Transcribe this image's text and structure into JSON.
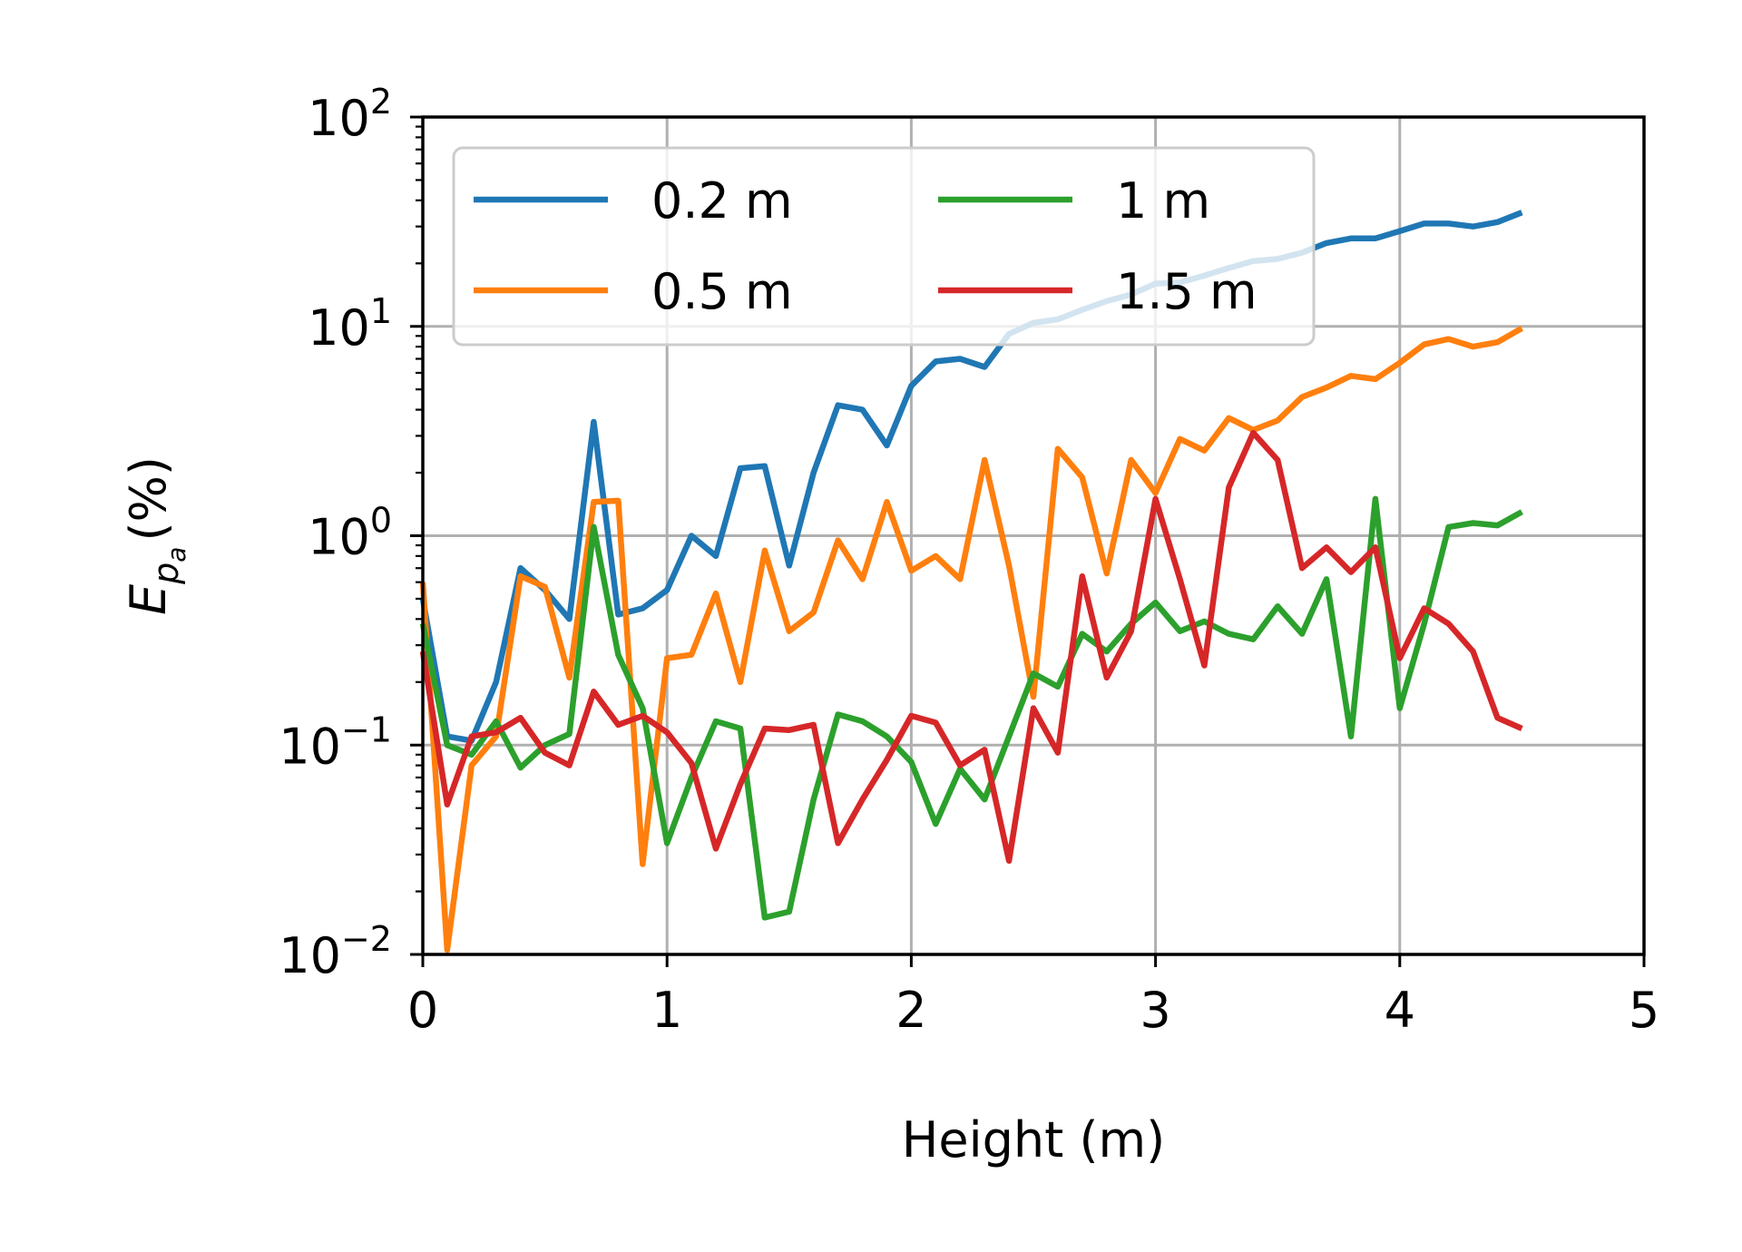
{
  "chart_data": {
    "type": "line",
    "xlabel": "Height (m)",
    "ylabel": {
      "italic_main": "E",
      "sub": "p",
      "subsub": "a",
      "suffix": "(%)"
    },
    "xlim": [
      0,
      5
    ],
    "ylim": [
      0.01,
      100
    ],
    "yscale": "log",
    "grid": true,
    "legend_placement": "upper-left",
    "legend_columns": 2,
    "x_ticks": [
      0,
      1,
      2,
      3,
      4,
      5
    ],
    "x_tick_labels": [
      "0",
      "1",
      "2",
      "3",
      "4",
      "5"
    ],
    "y_ticks": [
      0.01,
      0.1,
      1,
      10,
      100
    ],
    "y_tick_labels": [
      {
        "base": "10",
        "exp": "−2"
      },
      {
        "base": "10",
        "exp": "−1"
      },
      {
        "base": "10",
        "exp": "0"
      },
      {
        "base": "10",
        "exp": "1"
      },
      {
        "base": "10",
        "exp": "2"
      }
    ],
    "x": [
      0,
      0.1,
      0.2,
      0.3,
      0.4,
      0.5,
      0.6,
      0.7,
      0.8,
      0.9,
      1.0,
      1.1,
      1.2,
      1.3,
      1.4,
      1.5,
      1.6,
      1.7,
      1.8,
      1.9,
      2.0,
      2.1,
      2.2,
      2.3,
      2.4,
      2.5,
      2.6,
      2.7,
      2.8,
      2.9,
      3.0,
      3.1,
      3.2,
      3.3,
      3.4,
      3.5,
      3.6,
      3.7,
      3.8,
      3.9,
      4.0,
      4.1,
      4.2,
      4.3,
      4.4,
      4.5
    ],
    "series": [
      {
        "name": "0.2 m",
        "color": "#1f77b4",
        "values": [
          0.5,
          0.11,
          0.105,
          0.2,
          0.7,
          0.55,
          0.4,
          3.5,
          0.42,
          0.45,
          0.55,
          1.0,
          0.8,
          2.1,
          2.15,
          0.72,
          2.0,
          4.2,
          4.0,
          2.7,
          5.2,
          6.8,
          7.0,
          6.4,
          9.2,
          10.4,
          10.8,
          12.0,
          13.2,
          14.2,
          16.0,
          16.2,
          17.5,
          19.0,
          20.5,
          21.0,
          22.5,
          25.0,
          26.3,
          26.3,
          28.5,
          31.0,
          31.0,
          30.0,
          31.5,
          35.0
        ]
      },
      {
        "name": "0.5 m",
        "color": "#ff7f0e",
        "values": [
          0.6,
          0.0105,
          0.08,
          0.11,
          0.64,
          0.57,
          0.21,
          1.45,
          1.47,
          0.027,
          0.26,
          0.27,
          0.53,
          0.2,
          0.85,
          0.35,
          0.43,
          0.95,
          0.62,
          1.45,
          0.68,
          0.8,
          0.62,
          2.3,
          0.72,
          0.17,
          2.6,
          1.9,
          0.66,
          2.3,
          1.6,
          2.9,
          2.55,
          3.65,
          3.2,
          3.55,
          4.6,
          5.1,
          5.8,
          5.6,
          6.7,
          8.2,
          8.7,
          8.0,
          8.4,
          9.8
        ]
      },
      {
        "name": "1 m",
        "color": "#2ca02c",
        "values": [
          0.38,
          0.1,
          0.09,
          0.13,
          0.078,
          0.1,
          0.113,
          1.1,
          0.27,
          0.15,
          0.034,
          0.07,
          0.13,
          0.12,
          0.015,
          0.016,
          0.055,
          0.14,
          0.13,
          0.11,
          0.083,
          0.042,
          0.077,
          0.055,
          0.11,
          0.22,
          0.19,
          0.34,
          0.28,
          0.38,
          0.48,
          0.35,
          0.39,
          0.34,
          0.32,
          0.46,
          0.34,
          0.62,
          0.11,
          1.5,
          0.15,
          0.38,
          1.1,
          1.15,
          1.12,
          1.3
        ]
      },
      {
        "name": "1.5 m",
        "color": "#d62728",
        "values": [
          0.28,
          0.052,
          0.11,
          0.115,
          0.135,
          0.092,
          0.08,
          0.18,
          0.125,
          0.138,
          0.115,
          0.082,
          0.032,
          0.065,
          0.12,
          0.118,
          0.125,
          0.034,
          0.055,
          0.085,
          0.138,
          0.128,
          0.08,
          0.095,
          0.028,
          0.15,
          0.092,
          0.64,
          0.21,
          0.35,
          1.5,
          0.62,
          0.24,
          1.7,
          3.1,
          2.3,
          0.7,
          0.88,
          0.67,
          0.88,
          0.26,
          0.45,
          0.38,
          0.28,
          0.135,
          0.12
        ]
      }
    ]
  }
}
